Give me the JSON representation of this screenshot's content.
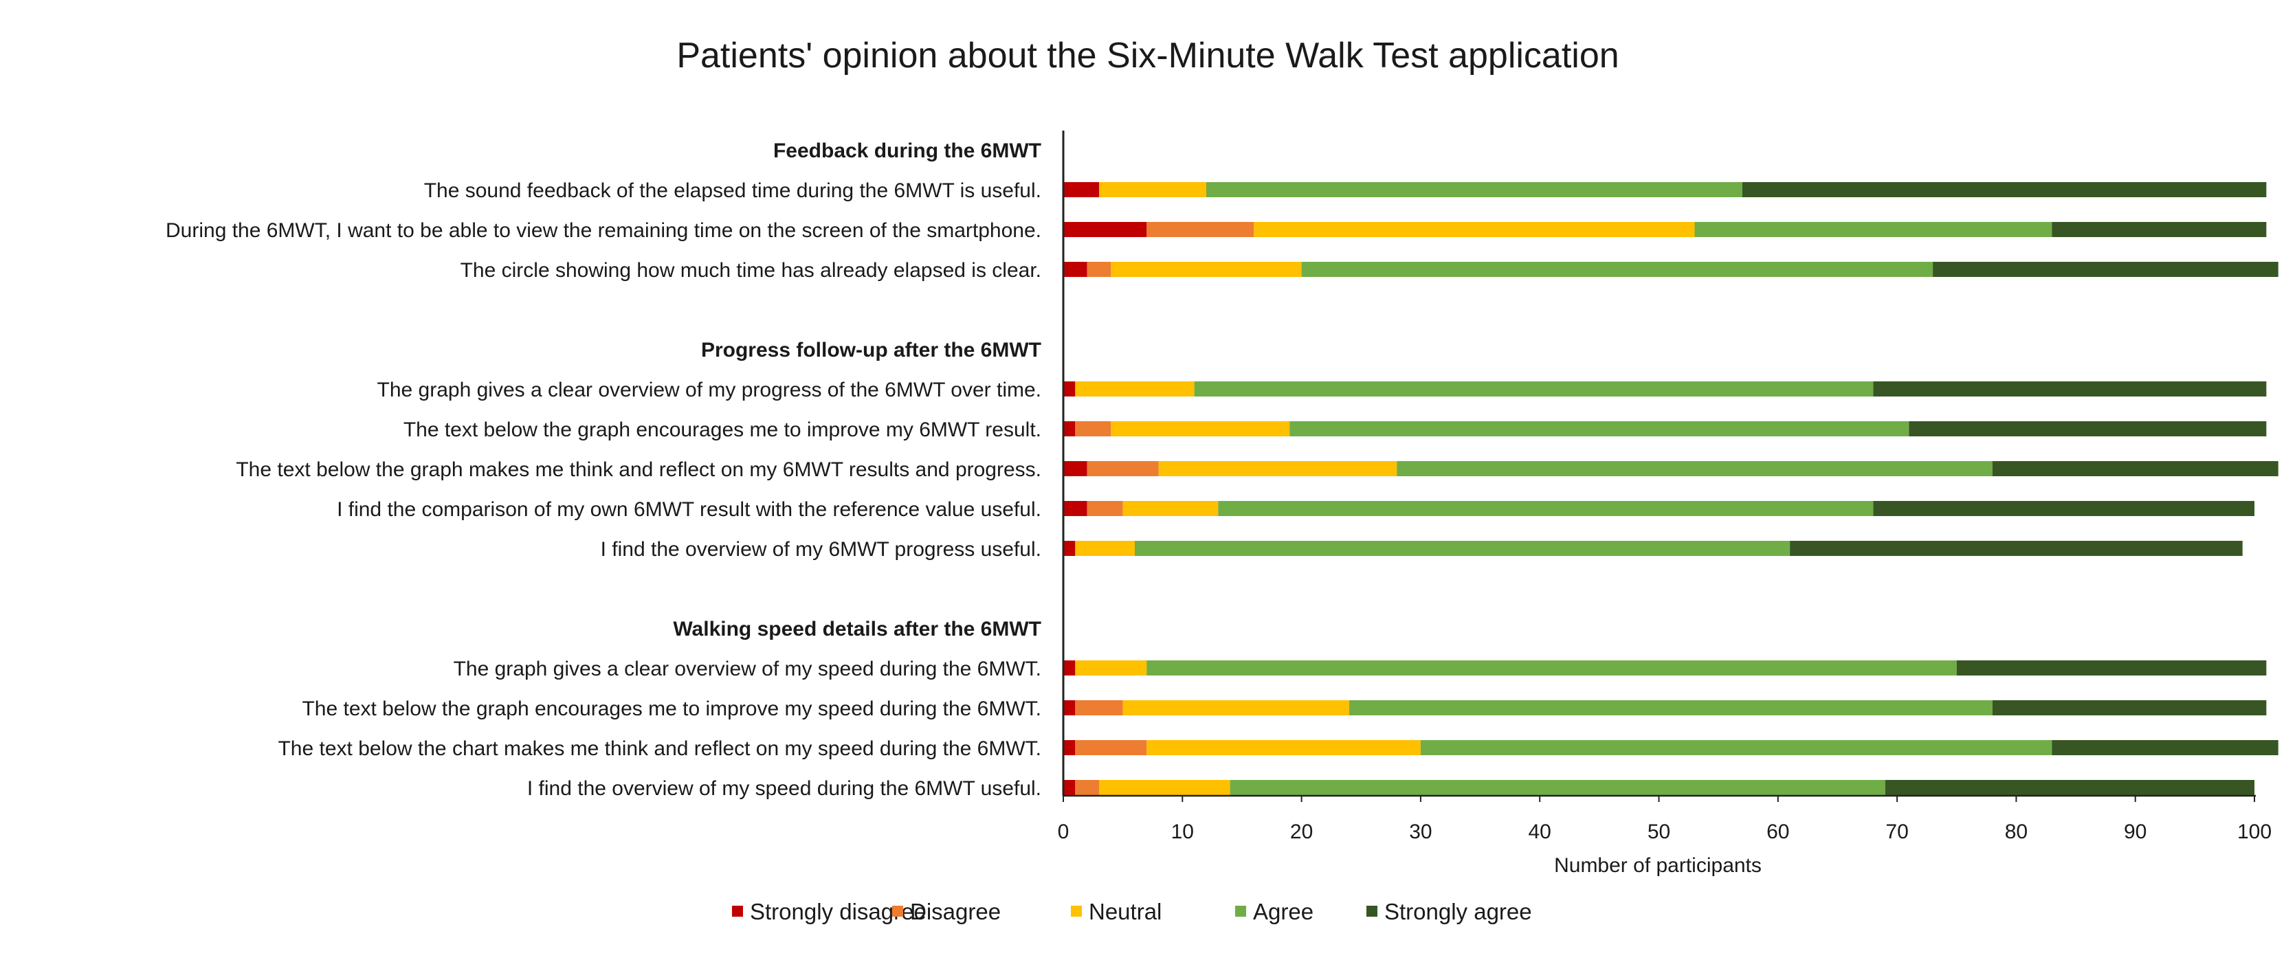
{
  "chart_data": {
    "type": "bar",
    "stacked": true,
    "orientation": "horizontal",
    "title": "Patients' opinion about the Six-Minute Walk Test application",
    "xlabel": "Number of participants",
    "ylabel": "",
    "xlim": [
      0,
      100
    ],
    "xticks": [
      0,
      10,
      20,
      30,
      40,
      50,
      60,
      70,
      80,
      90,
      100
    ],
    "grid": false,
    "legend_position": "bottom",
    "series": [
      {
        "name": "Strongly disagree",
        "color": "#c00000"
      },
      {
        "name": "Disagree",
        "color": "#ed7d31"
      },
      {
        "name": "Neutral",
        "color": "#ffc000"
      },
      {
        "name": "Agree",
        "color": "#70ad47"
      },
      {
        "name": "Strongly agree",
        "color": "#375623"
      }
    ],
    "groups": [
      {
        "heading": "Feedback during the 6MWT",
        "items": [
          {
            "label": "The sound feedback of the elapsed time during the 6MWT is useful.",
            "values": [
              3,
              0,
              9,
              45,
              44
            ]
          },
          {
            "label": "During the 6MWT, I want to be able to view the remaining time on the screen of the smartphone.",
            "values": [
              7,
              9,
              37,
              30,
              18
            ]
          },
          {
            "label": "The circle showing how much time has already elapsed is clear.",
            "values": [
              2,
              2,
              16,
              53,
              29
            ]
          }
        ]
      },
      {
        "heading": "Progress follow-up after the 6MWT",
        "items": [
          {
            "label": "The graph gives a clear overview of my progress of the 6MWT over time.",
            "values": [
              1,
              0,
              10,
              57,
              33
            ]
          },
          {
            "label": "The text below the graph encourages me to improve my 6MWT result.",
            "values": [
              1,
              3,
              15,
              52,
              30
            ]
          },
          {
            "label": "The text below the graph makes me think and reflect on my 6MWT results and progress.",
            "values": [
              2,
              6,
              20,
              50,
              24
            ]
          },
          {
            "label": "I find the comparison of my own 6MWT result with the reference value useful.",
            "values": [
              2,
              3,
              8,
              55,
              32
            ]
          },
          {
            "label": "I find the overview of my 6MWT progress useful.",
            "values": [
              1,
              0,
              5,
              55,
              38
            ]
          }
        ]
      },
      {
        "heading": "Walking speed details after the 6MWT",
        "items": [
          {
            "label": "The graph gives a clear overview of my speed during the 6MWT.",
            "values": [
              1,
              0,
              6,
              68,
              26
            ]
          },
          {
            "label": "The text below the graph encourages me to improve my speed during the 6MWT.",
            "values": [
              1,
              4,
              19,
              54,
              23
            ]
          },
          {
            "label": "The text below the chart makes me think and reflect on my speed during the 6MWT.",
            "values": [
              1,
              6,
              23,
              53,
              19
            ]
          },
          {
            "label": "I find the overview of my speed during the 6MWT useful.",
            "values": [
              1,
              2,
              11,
              55,
              31
            ]
          }
        ]
      }
    ]
  }
}
